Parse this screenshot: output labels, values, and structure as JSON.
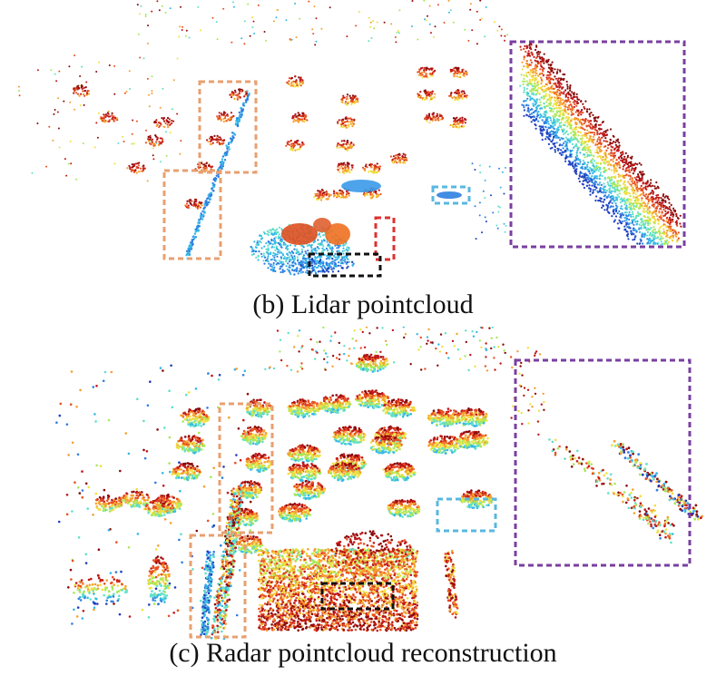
{
  "captions": {
    "lidar": "(b) Lidar pointcloud",
    "radar": "(c) Radar pointcloud reconstruction"
  },
  "palette": {
    "jet": [
      "#1f3fbf",
      "#2f7fe0",
      "#36b8e8",
      "#5fe0c8",
      "#a8e85a",
      "#f0e040",
      "#f5a030",
      "#e85020",
      "#c01818",
      "#8a0a0a"
    ],
    "box_orange": "#e8a070",
    "box_purple": "#7a3fa0",
    "box_red": "#e03030",
    "box_cyan": "#58b8e0",
    "box_black": "#111111"
  }
}
